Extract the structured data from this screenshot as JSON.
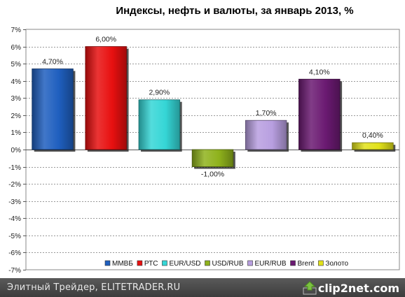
{
  "chart_data": {
    "type": "bar",
    "title": "Индексы, нефть и валюты, за январь 2013, %",
    "categories": [
      "ММВБ",
      "РТС",
      "EUR/USD",
      "USD/RUB",
      "EUR/RUB",
      "Brent",
      "Золото"
    ],
    "values": [
      4.7,
      6.0,
      2.9,
      -1.0,
      1.7,
      4.1,
      0.4
    ],
    "value_labels": [
      "4,70%",
      "6,00%",
      "2,90%",
      "-1,00%",
      "1,70%",
      "4,10%",
      "0,40%"
    ],
    "colors": [
      "#1f5fbf",
      "#e81010",
      "#35d6d6",
      "#8fb21c",
      "#b89fe0",
      "#6b1a72",
      "#e2e21a"
    ],
    "ylim": [
      -7,
      7
    ],
    "yticks": [
      "-7%",
      "-6%",
      "-5%",
      "-4%",
      "-3%",
      "-2%",
      "-1%",
      "0%",
      "1%",
      "2%",
      "3%",
      "4%",
      "5%",
      "6%",
      "7%"
    ],
    "grid": true,
    "legend": "bottom"
  },
  "footer": {
    "text": "Элитный Трейдер, ELITETRADER.RU",
    "brand": "clip2net.com",
    "brand_icon": "clip2net-arrow-icon"
  }
}
